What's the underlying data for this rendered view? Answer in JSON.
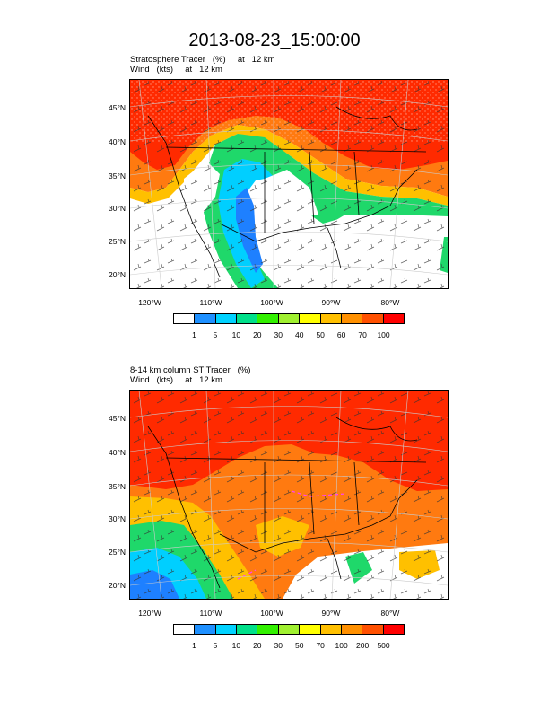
{
  "figure": {
    "title": "2013-08-23_15:00:00"
  },
  "panels": [
    {
      "subtitle_line1": "Stratosphere Tracer   (%)     at   12 km",
      "subtitle_line2": "Wind   (kts)     at   12 km",
      "lat_labels": [
        "45°N",
        "40°N",
        "35°N",
        "30°N",
        "25°N",
        "20°N"
      ],
      "lon_labels": [
        "120°W",
        "110°W",
        "100°W",
        "90°W",
        "80°W"
      ],
      "colorbar": {
        "colors": [
          "#ffffff",
          "#1e90ff",
          "#00d2ff",
          "#00e08a",
          "#32f000",
          "#a0f030",
          "#ffff00",
          "#ffc000",
          "#ff9000",
          "#ff5000",
          "#ff0000"
        ],
        "labels": [
          "1",
          "5",
          "10",
          "20",
          "30",
          "40",
          "50",
          "60",
          "70",
          "100"
        ]
      }
    },
    {
      "subtitle_line1": "8-14 km column ST Tracer   (%)",
      "subtitle_line2": "Wind   (kts)     at   12 km",
      "lat_labels": [
        "45°N",
        "40°N",
        "35°N",
        "30°N",
        "25°N",
        "20°N"
      ],
      "lon_labels": [
        "120°W",
        "110°W",
        "100°W",
        "90°W",
        "80°W"
      ],
      "colorbar": {
        "colors": [
          "#ffffff",
          "#1e90ff",
          "#00d2ff",
          "#00e08a",
          "#32f000",
          "#a0f030",
          "#ffff00",
          "#ffc000",
          "#ff9000",
          "#ff5000",
          "#ff0000"
        ],
        "labels": [
          "1",
          "5",
          "10",
          "20",
          "30",
          "50",
          "70",
          "100",
          "200",
          "500"
        ]
      }
    }
  ]
}
